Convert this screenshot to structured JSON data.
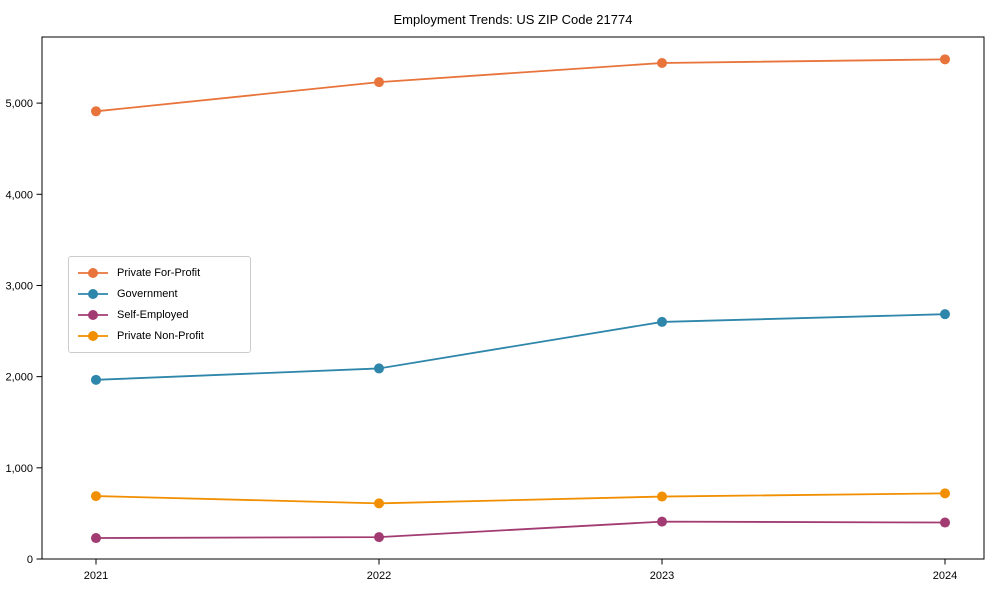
{
  "chart_data": {
    "type": "line",
    "title": "Employment Trends: US ZIP Code 21774",
    "x": [
      2021,
      2022,
      2023,
      2024
    ],
    "xtick_labels": [
      "2021",
      "2022",
      "2023",
      "2024"
    ],
    "yticks": [
      0,
      1000,
      2000,
      3000,
      4000,
      5000
    ],
    "ytick_labels": [
      "0",
      "1,000",
      "2,000",
      "3,000",
      "4,000",
      "5,000"
    ],
    "ylim": [
      0,
      5725
    ],
    "grid": false,
    "marker": "circle",
    "legend_position": "center left",
    "series": [
      {
        "name": "Private For-Profit",
        "color": "#E8743B",
        "values": [
          4910,
          5230,
          5440,
          5480
        ]
      },
      {
        "name": "Government",
        "color": "#2E86AB",
        "values": [
          1965,
          2090,
          2600,
          2685
        ]
      },
      {
        "name": "Self-Employed",
        "color": "#A23B72",
        "values": [
          230,
          240,
          410,
          400
        ]
      },
      {
        "name": "Private Non-Profit",
        "color": "#F18F01",
        "values": [
          690,
          610,
          685,
          720
        ]
      }
    ],
    "axis_color": "#000000",
    "background_color": "#ffffff"
  }
}
